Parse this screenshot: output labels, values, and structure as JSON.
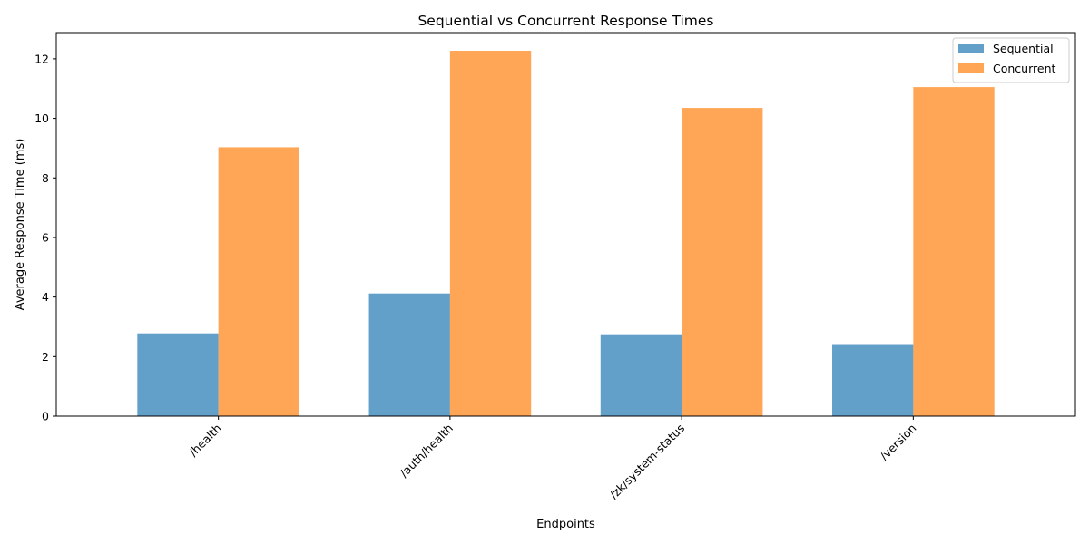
{
  "chart_data": {
    "type": "bar",
    "title": "Sequential vs Concurrent Response Times",
    "xlabel": "Endpoints",
    "ylabel": "Average Response Time (ms)",
    "categories": [
      "/health",
      "/auth/health",
      "/zk/system-status",
      "/version"
    ],
    "series": [
      {
        "name": "Sequential",
        "color": "#1f77b4",
        "values": [
          2.78,
          4.12,
          2.75,
          2.42
        ]
      },
      {
        "name": "Concurrent",
        "color": "#ff7f0e",
        "values": [
          9.03,
          12.27,
          10.35,
          11.05
        ]
      }
    ],
    "ylim": [
      0,
      12.88
    ],
    "yticks": [
      "0",
      "2",
      "4",
      "6",
      "8",
      "10",
      "12"
    ],
    "grid": false,
    "legend_position": "top-right"
  }
}
